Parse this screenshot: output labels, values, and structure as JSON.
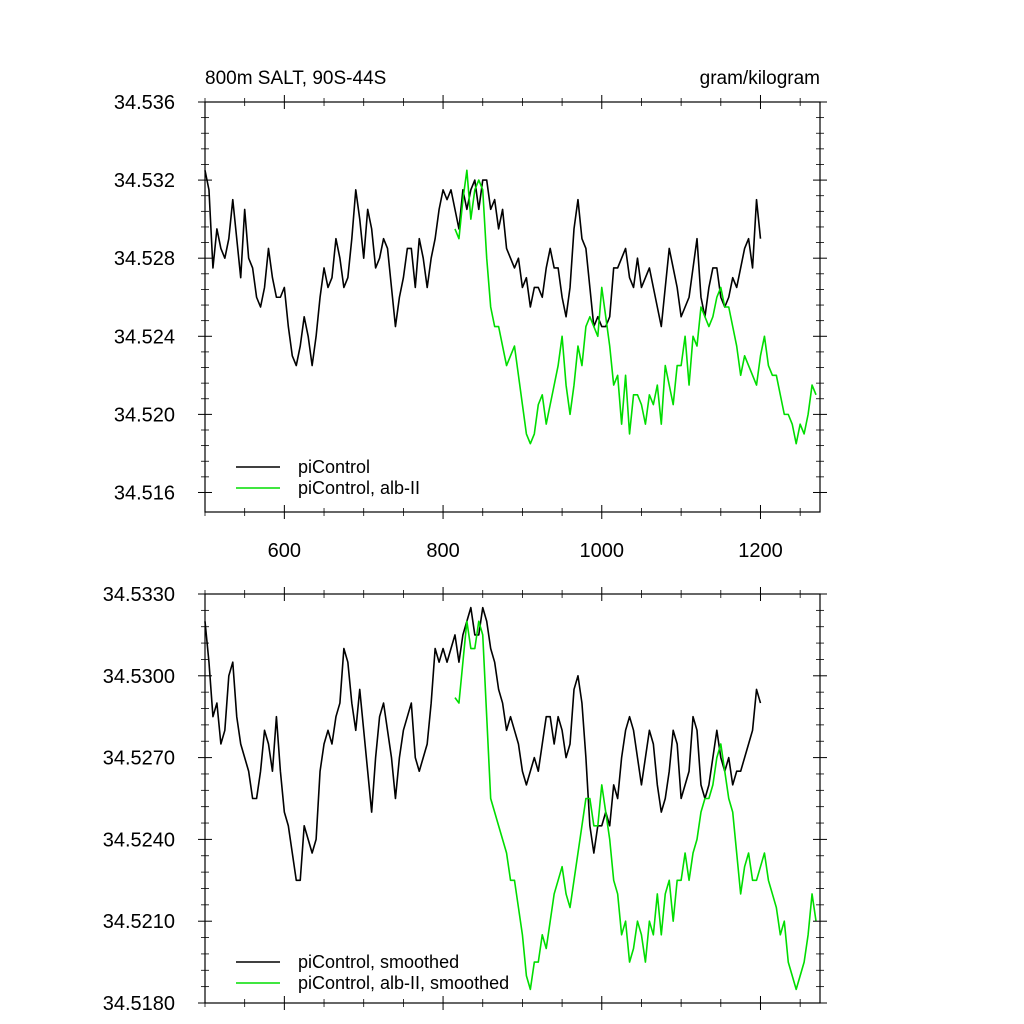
{
  "chart_data": [
    {
      "type": "line",
      "title_left": "800m SALT, 90S-44S",
      "title_right": "gram/kilogram",
      "xlim": [
        500,
        1275
      ],
      "ylim": [
        34.515,
        34.536
      ],
      "xticks": [
        600,
        800,
        1000,
        1200
      ],
      "xtick_labels": [
        "600",
        "800",
        "1000",
        "1200"
      ],
      "yticks": [
        34.516,
        34.52,
        34.524,
        34.528,
        34.532,
        34.536
      ],
      "ytick_labels": [
        "34.516",
        "34.520",
        "34.524",
        "34.528",
        "34.532",
        "34.536"
      ],
      "legend_position": "bottom-left",
      "series": [
        {
          "name": "piControl",
          "color": "#000000",
          "x": [
            500,
            505,
            510,
            515,
            520,
            525,
            530,
            535,
            540,
            545,
            550,
            555,
            560,
            565,
            570,
            575,
            580,
            585,
            590,
            595,
            600,
            605,
            610,
            615,
            620,
            625,
            630,
            635,
            640,
            645,
            650,
            655,
            660,
            665,
            670,
            675,
            680,
            685,
            690,
            695,
            700,
            705,
            710,
            715,
            720,
            725,
            730,
            735,
            740,
            745,
            750,
            755,
            760,
            765,
            770,
            775,
            780,
            785,
            790,
            795,
            800,
            805,
            810,
            815,
            820,
            825,
            830,
            835,
            840,
            845,
            850,
            855,
            860,
            865,
            870,
            875,
            880,
            885,
            890,
            895,
            900,
            905,
            910,
            915,
            920,
            925,
            930,
            935,
            940,
            945,
            950,
            955,
            960,
            965,
            970,
            975,
            980,
            985,
            990,
            995,
            1000,
            1005,
            1010,
            1015,
            1020,
            1025,
            1030,
            1035,
            1040,
            1045,
            1050,
            1055,
            1060,
            1065,
            1070,
            1075,
            1080,
            1085,
            1090,
            1095,
            1100,
            1105,
            1110,
            1115,
            1120,
            1125,
            1130,
            1135,
            1140,
            1145,
            1150,
            1155,
            1160,
            1165,
            1170,
            1175,
            1180,
            1185,
            1190,
            1195,
            1200
          ],
          "y": [
            34.5325,
            34.5315,
            34.5275,
            34.5295,
            34.5285,
            34.528,
            34.529,
            34.531,
            34.529,
            34.527,
            34.5305,
            34.528,
            34.5275,
            34.526,
            34.5255,
            34.5265,
            34.5285,
            34.527,
            34.526,
            34.526,
            34.5265,
            34.5245,
            34.523,
            34.5225,
            34.5235,
            34.525,
            34.524,
            34.5225,
            34.524,
            34.526,
            34.5275,
            34.5265,
            34.527,
            34.529,
            34.528,
            34.5265,
            34.527,
            34.529,
            34.5315,
            34.53,
            34.528,
            34.5305,
            34.5295,
            34.5275,
            34.528,
            34.529,
            34.5285,
            34.5265,
            34.5245,
            34.526,
            34.527,
            34.5285,
            34.5285,
            34.5265,
            34.529,
            34.528,
            34.5265,
            34.528,
            34.529,
            34.5305,
            34.5315,
            34.531,
            34.5315,
            34.5305,
            34.5295,
            34.5315,
            34.5305,
            34.5315,
            34.532,
            34.5305,
            34.532,
            34.532,
            34.5305,
            34.531,
            34.5295,
            34.5305,
            34.5285,
            34.528,
            34.5275,
            34.528,
            34.5265,
            34.527,
            34.5255,
            34.5265,
            34.5265,
            34.526,
            34.5275,
            34.5285,
            34.5275,
            34.5275,
            34.526,
            34.525,
            34.5265,
            34.5295,
            34.531,
            34.529,
            34.5285,
            34.5265,
            34.5245,
            34.525,
            34.5245,
            34.5245,
            34.525,
            34.5275,
            34.5275,
            34.528,
            34.5285,
            34.527,
            34.5265,
            34.528,
            34.5265,
            34.527,
            34.5275,
            34.5265,
            34.5255,
            34.5245,
            34.5265,
            34.5285,
            34.5275,
            34.5265,
            34.525,
            34.5255,
            34.526,
            34.5275,
            34.529,
            34.526,
            34.525,
            34.5265,
            34.5275,
            34.5275,
            34.526,
            34.5255,
            34.526,
            34.527,
            34.5265,
            34.5275,
            34.5285,
            34.529,
            34.5275,
            34.531,
            34.529
          ]
        },
        {
          "name": "piControl, alb-II",
          "color": "#00dd00",
          "x": [
            815,
            820,
            825,
            830,
            835,
            840,
            845,
            850,
            855,
            860,
            865,
            870,
            875,
            880,
            885,
            890,
            895,
            900,
            905,
            910,
            915,
            920,
            925,
            930,
            935,
            940,
            945,
            950,
            955,
            960,
            965,
            970,
            975,
            980,
            985,
            990,
            995,
            1000,
            1005,
            1010,
            1015,
            1020,
            1025,
            1030,
            1035,
            1040,
            1045,
            1050,
            1055,
            1060,
            1065,
            1070,
            1075,
            1080,
            1085,
            1090,
            1095,
            1100,
            1105,
            1110,
            1115,
            1120,
            1125,
            1130,
            1135,
            1140,
            1145,
            1150,
            1155,
            1160,
            1165,
            1170,
            1175,
            1180,
            1185,
            1190,
            1195,
            1200,
            1205,
            1210,
            1215,
            1220,
            1225,
            1230,
            1235,
            1240,
            1245,
            1250,
            1255,
            1260,
            1265,
            1270
          ],
          "y": [
            34.5295,
            34.529,
            34.531,
            34.5325,
            34.53,
            34.5315,
            34.532,
            34.5315,
            34.528,
            34.5255,
            34.5245,
            34.5245,
            34.5235,
            34.5225,
            34.523,
            34.5235,
            34.522,
            34.5205,
            34.519,
            34.5185,
            34.519,
            34.5205,
            34.521,
            34.5195,
            34.5205,
            34.5215,
            34.5225,
            34.524,
            34.5215,
            34.52,
            34.5215,
            34.5235,
            34.5225,
            34.5245,
            34.525,
            34.5245,
            34.524,
            34.5265,
            34.525,
            34.5235,
            34.5215,
            34.522,
            34.5195,
            34.522,
            34.519,
            34.521,
            34.521,
            34.5205,
            34.5195,
            34.521,
            34.5205,
            34.5215,
            34.5195,
            34.5225,
            34.5215,
            34.5205,
            34.5225,
            34.5225,
            34.524,
            34.5215,
            34.524,
            34.5235,
            34.5255,
            34.525,
            34.5245,
            34.525,
            34.526,
            34.5265,
            34.5255,
            34.5255,
            34.5245,
            34.5235,
            34.522,
            34.523,
            34.5225,
            34.522,
            34.5215,
            34.523,
            34.524,
            34.5225,
            34.522,
            34.522,
            34.521,
            34.52,
            34.52,
            34.5195,
            34.5185,
            34.5195,
            34.519,
            34.52,
            34.5215,
            34.521
          ]
        }
      ]
    },
    {
      "type": "line",
      "xlim": [
        500,
        1275
      ],
      "ylim": [
        34.518,
        34.533
      ],
      "xticks": [
        600,
        800,
        1000,
        1200
      ],
      "xtick_labels": [],
      "yticks": [
        34.518,
        34.521,
        34.524,
        34.527,
        34.53,
        34.533
      ],
      "ytick_labels": [
        "34.5180",
        "34.5210",
        "34.5240",
        "34.5270",
        "34.5300",
        "34.5330"
      ],
      "legend_position": "bottom-left",
      "series": [
        {
          "name": "piControl, smoothed",
          "color": "#000000",
          "x": [
            500,
            505,
            510,
            515,
            520,
            525,
            530,
            535,
            540,
            545,
            550,
            555,
            560,
            565,
            570,
            575,
            580,
            585,
            590,
            595,
            600,
            605,
            610,
            615,
            620,
            625,
            630,
            635,
            640,
            645,
            650,
            655,
            660,
            665,
            670,
            675,
            680,
            685,
            690,
            695,
            700,
            705,
            710,
            715,
            720,
            725,
            730,
            735,
            740,
            745,
            750,
            755,
            760,
            765,
            770,
            775,
            780,
            785,
            790,
            795,
            800,
            805,
            810,
            815,
            820,
            825,
            830,
            835,
            840,
            845,
            850,
            855,
            860,
            865,
            870,
            875,
            880,
            885,
            890,
            895,
            900,
            905,
            910,
            915,
            920,
            925,
            930,
            935,
            940,
            945,
            950,
            955,
            960,
            965,
            970,
            975,
            980,
            985,
            990,
            995,
            1000,
            1005,
            1010,
            1015,
            1020,
            1025,
            1030,
            1035,
            1040,
            1045,
            1050,
            1055,
            1060,
            1065,
            1070,
            1075,
            1080,
            1085,
            1090,
            1095,
            1100,
            1105,
            1110,
            1115,
            1120,
            1125,
            1130,
            1135,
            1140,
            1145,
            1150,
            1155,
            1160,
            1165,
            1170,
            1175,
            1180,
            1185,
            1190,
            1195,
            1200
          ],
          "y": [
            34.532,
            34.5305,
            34.5285,
            34.529,
            34.5275,
            34.528,
            34.53,
            34.5305,
            34.5285,
            34.5275,
            34.527,
            34.5265,
            34.5255,
            34.5255,
            34.5265,
            34.528,
            34.5275,
            34.5265,
            34.5285,
            34.5265,
            34.525,
            34.5245,
            34.5235,
            34.5225,
            34.5225,
            34.5245,
            34.524,
            34.5235,
            34.524,
            34.5265,
            34.5275,
            34.528,
            34.5275,
            34.5285,
            34.529,
            34.531,
            34.5305,
            34.529,
            34.528,
            34.5295,
            34.528,
            34.5265,
            34.525,
            34.527,
            34.5285,
            34.529,
            34.528,
            34.527,
            34.5255,
            34.527,
            34.528,
            34.5285,
            34.529,
            34.527,
            34.5265,
            34.527,
            34.5275,
            34.529,
            34.531,
            34.5305,
            34.531,
            34.5305,
            34.531,
            34.5315,
            34.5305,
            34.5315,
            34.532,
            34.5325,
            34.5315,
            34.5315,
            34.5325,
            34.532,
            34.531,
            34.5305,
            34.5295,
            34.529,
            34.528,
            34.5285,
            34.528,
            34.5275,
            34.5265,
            34.526,
            34.5265,
            34.527,
            34.5265,
            34.5275,
            34.5285,
            34.5285,
            34.5275,
            34.5285,
            34.528,
            34.527,
            34.5275,
            34.5295,
            34.53,
            34.529,
            34.527,
            34.5245,
            34.5235,
            34.5245,
            34.5245,
            34.525,
            34.5245,
            34.526,
            34.5255,
            34.527,
            34.528,
            34.5285,
            34.528,
            34.527,
            34.526,
            34.527,
            34.528,
            34.5275,
            34.526,
            34.525,
            34.5255,
            34.5265,
            34.528,
            34.5275,
            34.5255,
            34.526,
            34.5265,
            34.5285,
            34.528,
            34.526,
            34.5255,
            34.526,
            34.527,
            34.528,
            34.527,
            34.5265,
            34.527,
            34.526,
            34.5265,
            34.5265,
            34.527,
            34.5275,
            34.528,
            34.5295,
            34.529
          ]
        },
        {
          "name": "piControl, alb-II, smoothed",
          "color": "#00dd00",
          "x": [
            815,
            820,
            825,
            830,
            835,
            840,
            845,
            850,
            855,
            860,
            865,
            870,
            875,
            880,
            885,
            890,
            895,
            900,
            905,
            910,
            915,
            920,
            925,
            930,
            935,
            940,
            945,
            950,
            955,
            960,
            965,
            970,
            975,
            980,
            985,
            990,
            995,
            1000,
            1005,
            1010,
            1015,
            1020,
            1025,
            1030,
            1035,
            1040,
            1045,
            1050,
            1055,
            1060,
            1065,
            1070,
            1075,
            1080,
            1085,
            1090,
            1095,
            1100,
            1105,
            1110,
            1115,
            1120,
            1125,
            1130,
            1135,
            1140,
            1145,
            1150,
            1155,
            1160,
            1165,
            1170,
            1175,
            1180,
            1185,
            1190,
            1195,
            1200,
            1205,
            1210,
            1215,
            1220,
            1225,
            1230,
            1235,
            1240,
            1245,
            1250,
            1255,
            1260,
            1265,
            1270
          ],
          "y": [
            34.5292,
            34.529,
            34.5305,
            34.532,
            34.531,
            34.531,
            34.532,
            34.5315,
            34.5285,
            34.5255,
            34.525,
            34.5245,
            34.524,
            34.5235,
            34.5225,
            34.5225,
            34.5215,
            34.5205,
            34.519,
            34.5185,
            34.5195,
            34.5195,
            34.5205,
            34.52,
            34.521,
            34.522,
            34.5225,
            34.523,
            34.522,
            34.5215,
            34.5225,
            34.5235,
            34.5245,
            34.5255,
            34.5255,
            34.5245,
            34.5245,
            34.526,
            34.525,
            34.524,
            34.5225,
            34.522,
            34.5205,
            34.521,
            34.5195,
            34.52,
            34.521,
            34.5205,
            34.5195,
            34.521,
            34.5205,
            34.522,
            34.5205,
            34.522,
            34.5225,
            34.521,
            34.5225,
            34.5225,
            34.5235,
            34.5225,
            34.5235,
            34.524,
            34.525,
            34.5255,
            34.5255,
            34.526,
            34.527,
            34.5275,
            34.5265,
            34.5255,
            34.525,
            34.5235,
            34.522,
            34.523,
            34.5235,
            34.5225,
            34.5225,
            34.523,
            34.5235,
            34.5225,
            34.522,
            34.5215,
            34.5205,
            34.521,
            34.5195,
            34.519,
            34.5185,
            34.519,
            34.5195,
            34.5205,
            34.522,
            34.521
          ]
        }
      ]
    }
  ]
}
